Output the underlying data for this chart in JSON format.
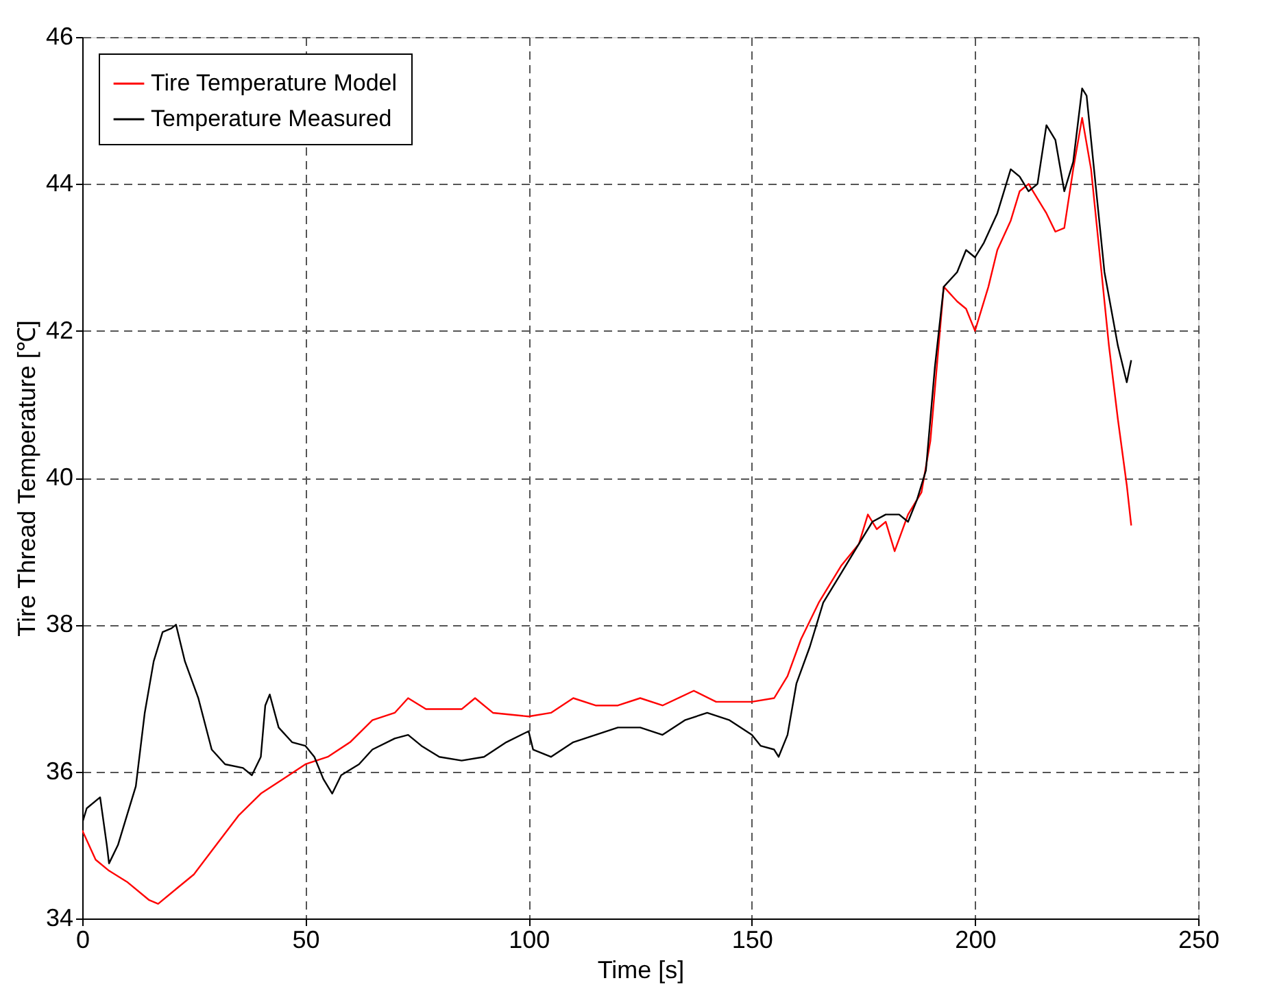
{
  "chart_data": {
    "type": "line",
    "xlabel": "Time [s]",
    "ylabel": "Tire Thread Temperature [℃]",
    "xlim": [
      0,
      250
    ],
    "xticks": [
      0,
      50,
      100,
      150,
      200,
      250
    ],
    "ylim": [
      34,
      46
    ],
    "yticks": [
      34,
      36,
      38,
      40,
      42,
      44,
      46
    ],
    "grid": true,
    "legend": "top left",
    "marker": "none",
    "line_style": "solid",
    "series": [
      {
        "name": "Tire Temperature Model",
        "color": "#ff0000",
        "x": [
          0,
          3,
          6,
          10,
          15,
          17,
          20,
          25,
          30,
          35,
          40,
          45,
          50,
          55,
          60,
          65,
          70,
          73,
          77,
          85,
          88,
          92,
          100,
          105,
          110,
          115,
          120,
          125,
          130,
          137,
          142,
          150,
          155,
          158,
          161,
          165,
          170,
          174,
          176,
          178,
          180,
          182,
          185,
          188,
          190,
          193,
          196,
          198,
          200,
          203,
          205,
          208,
          210,
          212,
          214,
          216,
          218,
          220,
          222,
          224,
          226,
          228,
          230,
          232,
          234,
          235
        ],
        "values": [
          35.2,
          34.8,
          34.65,
          34.5,
          34.25,
          34.2,
          34.35,
          34.6,
          35.0,
          35.4,
          35.7,
          35.9,
          36.1,
          36.2,
          36.4,
          36.7,
          36.8,
          37.0,
          36.85,
          36.85,
          37.0,
          36.8,
          36.75,
          36.8,
          37.0,
          36.9,
          36.9,
          37.0,
          36.9,
          37.1,
          36.95,
          36.95,
          37.0,
          37.3,
          37.8,
          38.3,
          38.8,
          39.1,
          39.5,
          39.3,
          39.4,
          39.0,
          39.5,
          39.8,
          40.5,
          42.6,
          42.4,
          42.3,
          42.0,
          42.6,
          43.1,
          43.5,
          43.9,
          44.0,
          43.8,
          43.6,
          43.35,
          43.4,
          44.2,
          44.9,
          44.2,
          43.0,
          41.8,
          40.8,
          39.9,
          39.35
        ]
      },
      {
        "name": "Temperature Measured",
        "color": "#000000",
        "x": [
          0,
          1,
          4,
          5.5,
          6,
          8,
          10,
          12,
          14,
          16,
          18,
          20,
          21,
          23,
          26,
          29,
          32,
          36,
          38,
          40,
          41,
          42,
          44,
          47,
          50,
          52,
          54,
          56,
          58,
          62,
          65,
          70,
          73,
          76,
          80,
          85,
          90,
          95,
          100,
          101,
          105,
          110,
          115,
          120,
          125,
          130,
          135,
          140,
          145,
          150,
          152,
          155,
          156,
          158,
          160,
          163,
          166,
          170,
          173,
          177,
          180,
          183,
          185,
          187,
          189,
          191,
          193,
          196,
          198,
          200,
          202,
          205,
          208,
          210,
          212,
          214,
          216,
          218,
          220,
          222,
          224,
          225,
          227,
          229,
          232,
          234,
          235
        ],
        "values": [
          35.3,
          35.5,
          35.65,
          35.0,
          34.75,
          35.0,
          35.4,
          35.8,
          36.8,
          37.5,
          37.9,
          37.95,
          38.0,
          37.5,
          37.0,
          36.3,
          36.1,
          36.05,
          35.95,
          36.2,
          36.9,
          37.05,
          36.6,
          36.4,
          36.35,
          36.2,
          35.9,
          35.7,
          35.95,
          36.1,
          36.3,
          36.45,
          36.5,
          36.35,
          36.2,
          36.15,
          36.2,
          36.4,
          36.55,
          36.3,
          36.2,
          36.4,
          36.5,
          36.6,
          36.6,
          36.5,
          36.7,
          36.8,
          36.7,
          36.5,
          36.35,
          36.3,
          36.2,
          36.5,
          37.2,
          37.7,
          38.3,
          38.7,
          39.0,
          39.4,
          39.5,
          39.5,
          39.4,
          39.7,
          40.1,
          41.5,
          42.6,
          42.8,
          43.1,
          43.0,
          43.2,
          43.6,
          44.2,
          44.1,
          43.9,
          44.0,
          44.8,
          44.6,
          43.9,
          44.3,
          45.3,
          45.2,
          44.0,
          42.8,
          41.8,
          41.3,
          41.6
        ]
      }
    ]
  }
}
